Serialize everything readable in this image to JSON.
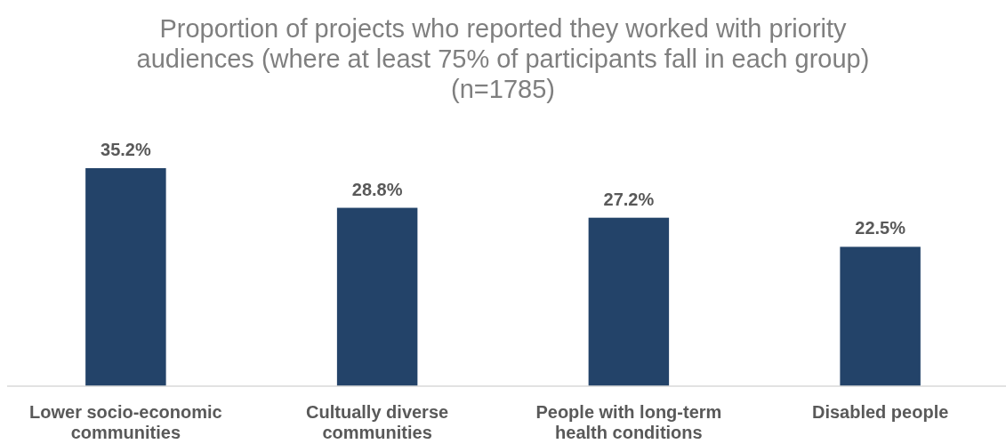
{
  "chart_data": {
    "type": "bar",
    "title": "Proportion of projects who reported they worked with priority audiences (where at least 75% of participants fall in each group) (n=1785)",
    "categories": [
      "Lower socio-economic communities",
      "Cultually diverse communities",
      "People with long-term health conditions",
      "Disabled people"
    ],
    "values": [
      35.2,
      28.8,
      27.2,
      22.5
    ],
    "value_labels": [
      "35.2%",
      "28.8%",
      "27.2%",
      "22.5%"
    ],
    "color": "#234369"
  }
}
